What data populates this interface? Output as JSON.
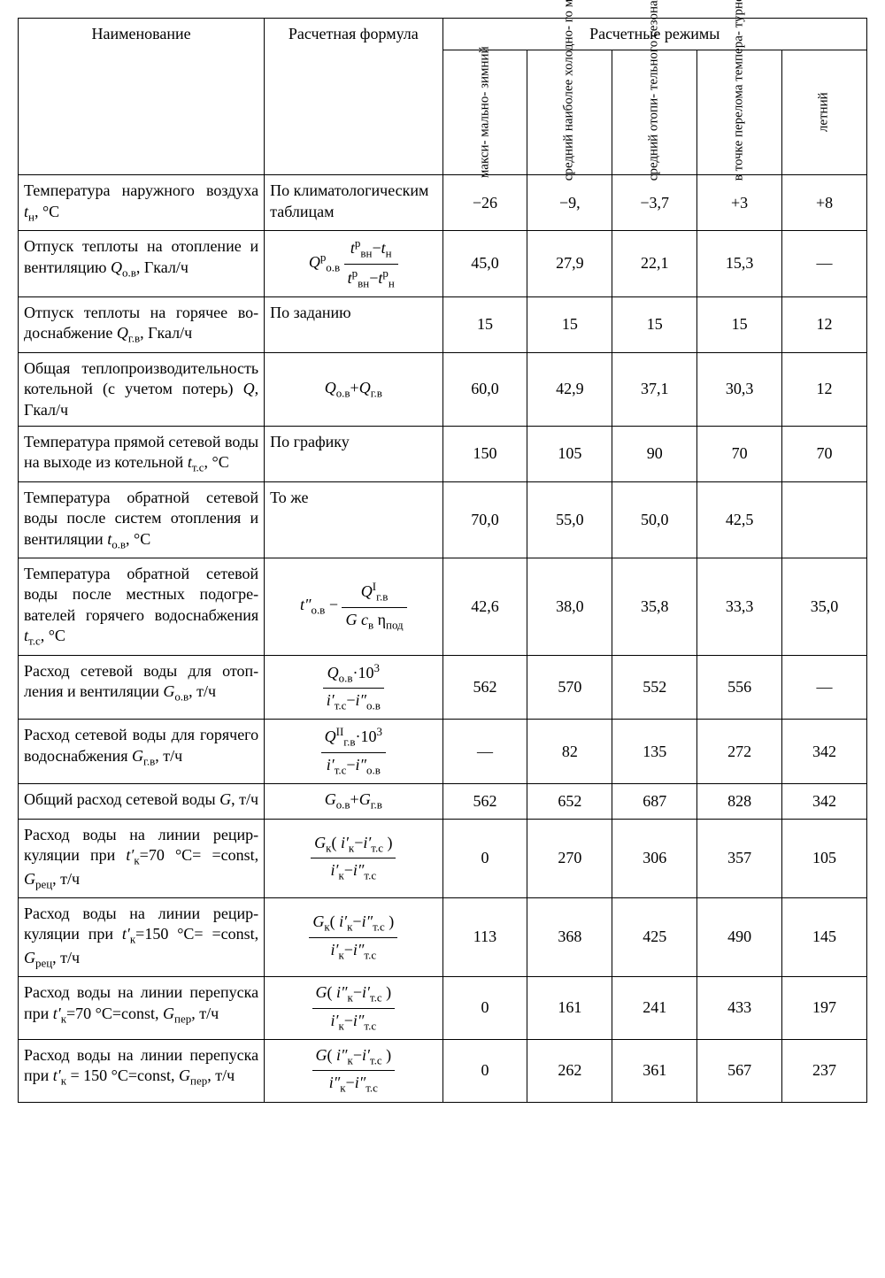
{
  "header": {
    "col_name": "Наименование",
    "col_formula": "Расчетная формула",
    "col_group": "Расчетные режимы",
    "modes": [
      "макси-\nмально-\nзимний",
      "средний\nнаиболее\nхолодно-\nго месяца",
      "средний\nотопи-\nтельного\nсезона",
      "в точке\nперелома\nтемпера-\nтурного\nграфика",
      "летний"
    ]
  },
  "rows": [
    {
      "name": "Температура наружного возду­ха <span class='it'>t</span><span class='sub'>н</span>, °C",
      "formula": "<span>По климатологическим таблицам</span>",
      "formulaAlign": "left",
      "v": [
        "−26",
        "−9,",
        "−3,7",
        "+3",
        "+8"
      ]
    },
    {
      "name": "Отпуск теплоты на отопление и вентиляцию <span class='it'>Q</span><span class='sub'>о.в</span>, Гкал/ч",
      "formula": "<span class='it'>Q</span><span class='sup'>р</span><span class='sub'>о.в</span> <span class='frac'><span class='n'><span class='it'>t</span><span class='sup'>р</span><span class='sub'>вн</span>−<span class='it'>t</span><span class='sub'>н</span></span><span class='d'><span class='it'>t</span><span class='sup'>р</span><span class='sub'>вн</span>−<span class='it'>t</span><span class='sup'>р</span><span class='sub'>н</span></span></span>",
      "v": [
        "45,0",
        "27,9",
        "22,1",
        "15,3",
        "—"
      ]
    },
    {
      "name": "Отпуск теплоты на горячее во­доснабжение <span class='it'>Q</span><span class='sub'>г.в</span>, Гкал/ч",
      "formula": "По заданию",
      "formulaAlign": "left",
      "v": [
        "15",
        "15",
        "15",
        "15",
        "12"
      ]
    },
    {
      "name": "Общая теплопроизводитель­ность котельной (с учетом потерь) <span class='it'>Q</span>, Гкал/ч",
      "formula": "<span class='it'>Q</span><span class='sub'>о.в</span>+<span class='it'>Q</span><span class='sub'>г.в</span>",
      "v": [
        "60,0",
        "42,9",
        "37,1",
        "30,3",
        "12"
      ]
    },
    {
      "name": "Температура прямой сетевой воды на выходе из котельной <span class='it'>t</span><span class='sub'>т.с</span>, °C",
      "formula": "По графику",
      "formulaAlign": "left",
      "v": [
        "150",
        "105",
        "90",
        "70",
        "70"
      ]
    },
    {
      "name": "Температура обратной сетевой воды после систем отопления и вентиляции <span class='it'>t</span><span class='sub'>о.в</span>, °C",
      "formula": "То же",
      "formulaAlign": "left",
      "v": [
        "70,0",
        "55,0",
        "50,0",
        "42,5",
        ""
      ]
    },
    {
      "name": "Температура обратной сетевой воды после местных подогре­вателей горячего водоснабже­ния <span class='it'>t</span><span class='sub'>т.с</span>, °C",
      "formula": "<span class='it'>t″</span><span class='sub'>о.в</span> − <span class='frac'><span class='n'><span class='it'>Q</span><span class='sup'>I</span><span class='sub'>г.в</span></span><span class='d'><span class='it'>G c</span><span class='sub'>в</span> η<span class='sub'>под</span></span></span>",
      "v": [
        "42,6",
        "38,0",
        "35,8",
        "33,3",
        "35,0"
      ]
    },
    {
      "name": "Расход сетевой воды для отоп­ления и вентиляции <span class='it'>G</span><span class='sub'>о.в</span>, т/ч",
      "formula": "<span class='frac'><span class='n'><span class='it'>Q</span><span class='sub'>о.в</span>·10<span class='sup'>3</span></span><span class='d'><span class='it'>i′</span><span class='sub'>т.с</span>−<span class='it'>i″</span><span class='sub'>о.в</span></span></span>",
      "v": [
        "562",
        "570",
        "552",
        "556",
        "—"
      ]
    },
    {
      "name": "Расход сетевой воды для горя­чего водоснабжения <span class='it'>G</span><span class='sub'>г.в</span>, т/ч",
      "formula": "<span class='frac'><span class='n'><span class='it'>Q</span><span class='sup'>II</span><span class='sub'>г.в</span>·10<span class='sup'>3</span></span><span class='d'><span class='it'>i′</span><span class='sub'>т.с</span>−<span class='it'>i″</span><span class='sub'>о.в</span></span></span>",
      "v": [
        "—",
        "82",
        "135",
        "272",
        "342"
      ]
    },
    {
      "name": "Общий расход сетевой воды <span class='it'>G</span>, т/ч",
      "formula": "<span class='it'>G</span><span class='sub'>о.в</span>+<span class='it'>G</span><span class='sub'>г.в</span>",
      "v": [
        "562",
        "652",
        "687",
        "828",
        "342"
      ]
    },
    {
      "name": "Расход воды на линии рецир­куляции при <span class='it'>t′</span><span class='sub'>к</span>=70 °C= =const, <span class='it'>G</span><span class='sub'>рец</span>, т/ч",
      "formula": "<span class='frac'><span class='n'><span class='it'>G</span><span class='sub'>к</span>( <span class='it'>i′</span><span class='sub'>к</span>−<span class='it'>i′</span><span class='sub'>т.с</span> )</span><span class='d'><span class='it'>i′</span><span class='sub'>к</span>−<span class='it'>i″</span><span class='sub'>т.с</span></span></span>",
      "v": [
        "0",
        "270",
        "306",
        "357",
        "105"
      ]
    },
    {
      "name": "Расход воды на линии рецир­куляции при <span class='it'>t′</span><span class='sub'>к</span>=150 °C= =const, <span class='it'>G</span><span class='sub'>рец</span>, т/ч",
      "formula": "<span class='frac'><span class='n'><span class='it'>G</span><span class='sub'>к</span>( <span class='it'>i′</span><span class='sub'>к</span>−<span class='it'>i″</span><span class='sub'>т.с</span> )</span><span class='d'><span class='it'>i′</span><span class='sub'>к</span>−<span class='it'>i″</span><span class='sub'>т.с</span></span></span>",
      "v": [
        "113",
        "368",
        "425",
        "490",
        "145"
      ]
    },
    {
      "name": "Расход воды на линии перепус­ка при <span class='it'>t′</span><span class='sub'>к</span>=70 °C=const, <span class='it'>G</span><span class='sub'>пер</span>, т/ч",
      "formula": "<span class='frac'><span class='n'><span class='it'>G</span>( <span class='it'>i″</span><span class='sub'>к</span>−<span class='it'>i′</span><span class='sub'>т.с</span> )</span><span class='d'><span class='it'>i′</span><span class='sub'>к</span>−<span class='it'>i″</span><span class='sub'>т.с</span></span></span>",
      "v": [
        "0",
        "161",
        "241",
        "433",
        "197"
      ]
    },
    {
      "name": "Расход воды на линии перепус­ка при <span class='it'>t′</span><span class='sub'>к</span> = 150 °C=const, <span class='it'>G</span><span class='sub'>пер</span>, т/ч",
      "formula": "<span class='frac'><span class='n'><span class='it'>G</span>( <span class='it'>i″</span><span class='sub'>к</span>−<span class='it'>i′</span><span class='sub'>т.с</span> )</span><span class='d'><span class='it'>i″</span><span class='sub'>к</span>−<span class='it'>i″</span><span class='sub'>т.с</span></span></span>",
      "v": [
        "0",
        "262",
        "361",
        "567",
        "237"
      ]
    }
  ]
}
